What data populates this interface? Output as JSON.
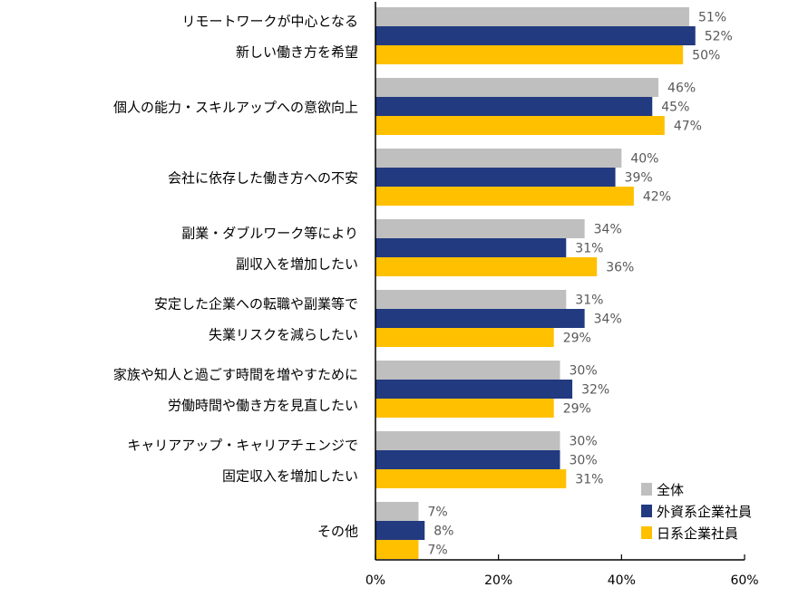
{
  "chart_data": {
    "type": "bar",
    "orientation": "horizontal",
    "categories": [
      [
        "リモートワークが中心となる",
        "新しい働き方を希望"
      ],
      [
        "個人の能力・スキルアップへの意欲向上"
      ],
      [
        "会社に依存した働き方への不安"
      ],
      [
        "副業・ダブルワーク等により",
        "副収入を増加したい"
      ],
      [
        "安定した企業への転職や副業等で",
        "失業リスクを減らしたい"
      ],
      [
        "家族や知人と過ごす時間を増やすために",
        "労働時間や働き方を見直したい"
      ],
      [
        "キャリアアップ・キャリアチェンジで",
        "固定収入を増加したい"
      ],
      [
        "その他"
      ]
    ],
    "series": [
      {
        "name": "全体",
        "color": "#bfbfbf",
        "values": [
          51,
          46,
          40,
          34,
          31,
          30,
          30,
          7
        ]
      },
      {
        "name": "外資系企業社員",
        "color": "#223a80",
        "values": [
          52,
          45,
          39,
          31,
          34,
          32,
          30,
          8
        ]
      },
      {
        "name": "日系企業社員",
        "color": "#ffc000",
        "values": [
          50,
          47,
          42,
          36,
          29,
          29,
          31,
          7
        ]
      }
    ],
    "value_suffix": "%",
    "xlim": [
      0,
      60
    ],
    "xticks": [
      "0%",
      "20%",
      "40%",
      "60%"
    ],
    "xtick_values": [
      0,
      20,
      40,
      60
    ],
    "grid": false,
    "legend_position": "bottom-right"
  }
}
